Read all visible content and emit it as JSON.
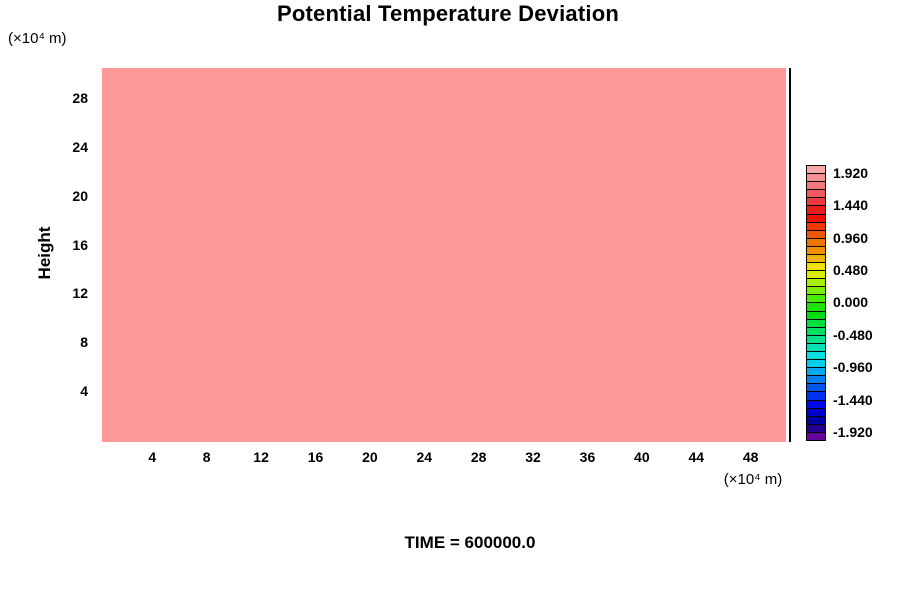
{
  "title": "Potential Temperature Deviation",
  "time_label": "TIME = 600000.0",
  "y_axis": {
    "label": "Height",
    "units": "(×10⁴ m)"
  },
  "x_axis": {
    "units": "(×10⁴ m)"
  },
  "plot": {
    "fill_color": "#FE9898",
    "right_edge_line_color": "#000000"
  },
  "colorbar": {
    "labels": [
      "1.920",
      "1.440",
      "0.960",
      "0.480",
      "0.000",
      "-0.480",
      "-0.960",
      "-1.440",
      "-1.920"
    ],
    "colors": [
      "#F8A8A8",
      "#F49090",
      "#F47878",
      "#F25A5A",
      "#EE3C3C",
      "#EC1C1C",
      "#EE1000",
      "#F03800",
      "#F05800",
      "#F07400",
      "#F09000",
      "#F0B400",
      "#F0E000",
      "#D8F000",
      "#A8F000",
      "#78F000",
      "#48EC00",
      "#1CE400",
      "#00DC14",
      "#00E03C",
      "#00E064",
      "#00E08C",
      "#00E0B4",
      "#00E0DC",
      "#00CCEC",
      "#00A8F0",
      "#0080F0",
      "#0058F0",
      "#0030F0",
      "#0008F0",
      "#0000CC",
      "#0000A4",
      "#240090",
      "#64089C"
    ]
  },
  "chart_data": {
    "type": "heatmap",
    "title": "Potential Temperature Deviation",
    "x": {
      "units": "(×10⁴ m)",
      "ticks": [
        4,
        8,
        12,
        16,
        20,
        24,
        28,
        32,
        36,
        40,
        44,
        48
      ],
      "lim": [
        0.3,
        50.6
      ]
    },
    "y": {
      "label": "Height",
      "units": "(×10⁴ m)",
      "ticks": [
        28,
        24,
        20,
        16,
        12,
        8,
        4
      ],
      "lim": [
        -0.2,
        30.5
      ]
    },
    "field": {
      "description": "uniform constant field over entire domain",
      "value_bin": "top colorbar bin (>= 1.920)",
      "fill_color": "#FE9898"
    },
    "colorbar": {
      "label_values": [
        1.92,
        1.44,
        0.96,
        0.48,
        0.0,
        -0.48,
        -0.96,
        -1.44,
        -1.92
      ],
      "segment_step": 0.12,
      "n_segments": 34,
      "orientation": "vertical",
      "position": "right"
    },
    "grid": false,
    "annotations": [
      "TIME = 600000.0"
    ]
  }
}
